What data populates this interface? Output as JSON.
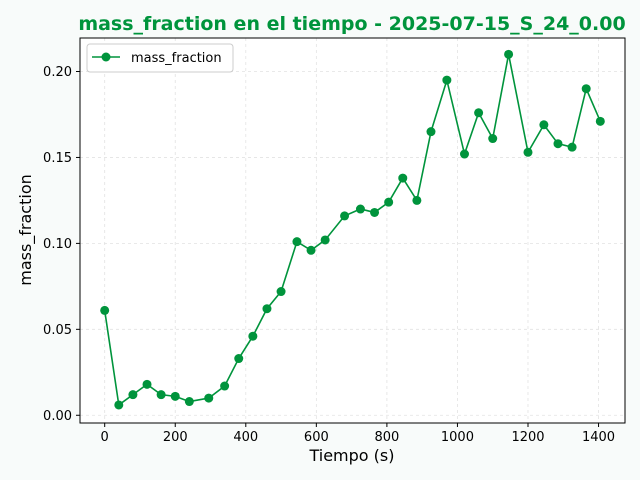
{
  "chart_data": {
    "type": "line",
    "title": "mass_fraction en el tiempo - 2025-07-15_S_24_0.00",
    "xlabel": "Tiempo (s)",
    "ylabel": "mass_fraction",
    "xlim": [
      -70,
      1475
    ],
    "ylim": [
      -0.0045,
      0.2195
    ],
    "grid": true,
    "legend_position": "top-left",
    "x_ticks": [
      {
        "value": 0,
        "label": "0"
      },
      {
        "value": 200,
        "label": "200"
      },
      {
        "value": 400,
        "label": "400"
      },
      {
        "value": 600,
        "label": "600"
      },
      {
        "value": 800,
        "label": "800"
      },
      {
        "value": 1000,
        "label": "1000"
      },
      {
        "value": 1200,
        "label": "1200"
      },
      {
        "value": 1400,
        "label": "1400"
      }
    ],
    "y_ticks": [
      {
        "value": 0.0,
        "label": "0.00"
      },
      {
        "value": 0.05,
        "label": "0.05"
      },
      {
        "value": 0.1,
        "label": "0.10"
      },
      {
        "value": 0.15,
        "label": "0.15"
      },
      {
        "value": 0.2,
        "label": "0.20"
      }
    ],
    "series": [
      {
        "name": "mass_fraction",
        "color": "#00943c",
        "x": [
          0,
          40,
          80,
          120,
          160,
          200,
          240,
          295,
          340,
          380,
          420,
          460,
          500,
          545,
          585,
          625,
          680,
          725,
          765,
          805,
          845,
          885,
          925,
          970,
          1020,
          1060,
          1100,
          1145,
          1200,
          1245,
          1285,
          1325,
          1365,
          1405
        ],
        "values": [
          0.061,
          0.006,
          0.012,
          0.018,
          0.012,
          0.011,
          0.008,
          0.01,
          0.017,
          0.033,
          0.046,
          0.062,
          0.072,
          0.101,
          0.096,
          0.102,
          0.116,
          0.12,
          0.118,
          0.124,
          0.138,
          0.125,
          0.165,
          0.195,
          0.152,
          0.176,
          0.161,
          0.21,
          0.153,
          0.169,
          0.158,
          0.156,
          0.19,
          0.171
        ]
      }
    ]
  }
}
